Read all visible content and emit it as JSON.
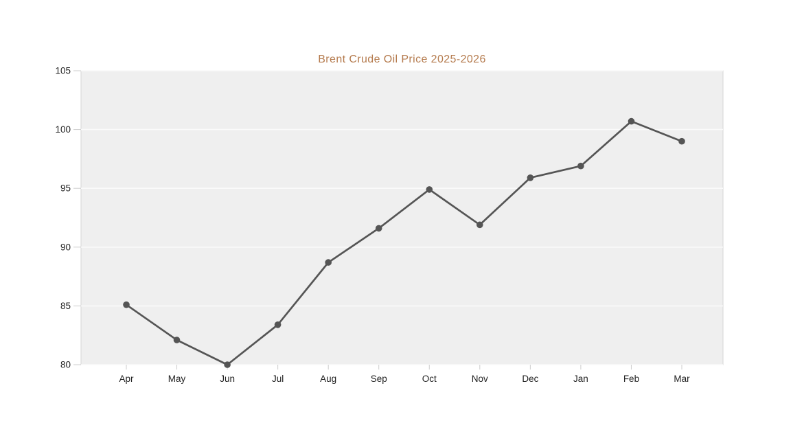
{
  "chart_data": {
    "type": "line",
    "title": "Brent Crude Oil Price 2025-2026",
    "categories": [
      "Apr",
      "May",
      "Jun",
      "Jul",
      "Aug",
      "Sep",
      "Oct",
      "Nov",
      "Dec",
      "Jan",
      "Feb",
      "Mar"
    ],
    "values": [
      85.1,
      82.1,
      80.0,
      83.4,
      88.7,
      91.6,
      94.9,
      91.9,
      95.9,
      96.9,
      100.7,
      99.0
    ],
    "ylim": [
      80,
      105
    ],
    "yticks": [
      80,
      85,
      90,
      95,
      100,
      105
    ],
    "xlabel": "",
    "ylabel": "",
    "legend": "none",
    "grid": "horizontal",
    "marker": "circle",
    "style": {
      "title_color": "#b57b4e",
      "line_color": "#555555",
      "marker_color": "#555555",
      "plot_background": "#efefef",
      "plot_border_color": "#d5d5d5",
      "grid_color": "#fafafa",
      "tick_color": "#cccccc",
      "axis_label_color": "#222222",
      "page_background": "#ffffff"
    }
  }
}
